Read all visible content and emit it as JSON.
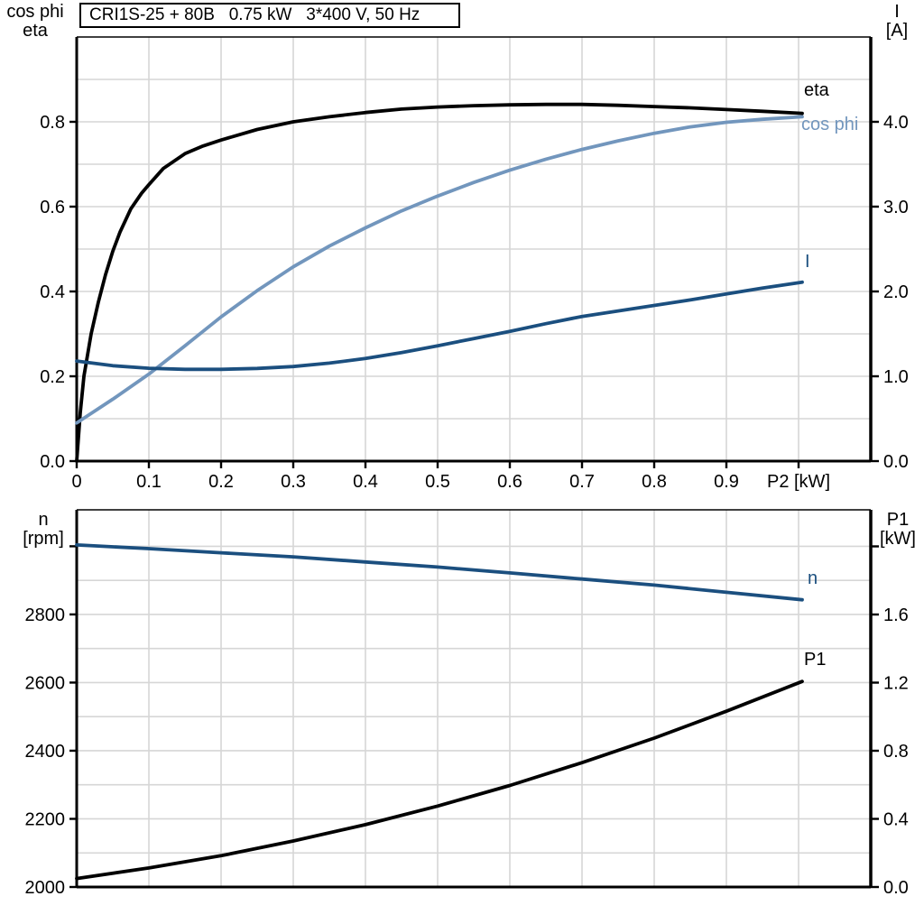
{
  "title": "CRI1S-25 + 80B   0.75 kW   3*400 V, 50 Hz",
  "colors": {
    "curve_black": "#000000",
    "curve_dark_blue": "#1b4f7f",
    "curve_light_blue": "#7296bd",
    "grid": "#d6d6d6",
    "frame": "#000000"
  },
  "chart_data": [
    {
      "type": "line",
      "x_axis": {
        "label": "P2 [kW]",
        "range": [
          0,
          1.1
        ],
        "tick_step": 0.1,
        "tick_labels": [
          "0",
          "0.1",
          "0.2",
          "0.3",
          "0.4",
          "0.5",
          "0.6",
          "0.7",
          "0.8",
          "0.9",
          "P2 [kW]"
        ],
        "grid": true
      },
      "left_axis": {
        "title_lines": [
          "cos phi",
          "eta"
        ],
        "range": [
          0,
          1.0
        ],
        "major_ticks": [
          0,
          0.2,
          0.4,
          0.6,
          0.8
        ],
        "tick_labels": [
          "0.0",
          "0.2",
          "0.4",
          "0.6",
          "0.8"
        ],
        "minor_step": 0.1,
        "grid": true
      },
      "right_axis": {
        "title_lines": [
          "I",
          "[A]"
        ],
        "range": [
          0,
          5.0
        ],
        "major_ticks": [
          0,
          1.0,
          2.0,
          3.0,
          4.0
        ],
        "tick_labels": [
          "0.0",
          "1.0",
          "2.0",
          "3.0",
          "4.0"
        ]
      },
      "series": [
        {
          "name": "eta",
          "label": "eta",
          "axis": "left",
          "color_key": "curve_black",
          "points": [
            [
              0,
              0
            ],
            [
              0.005,
              0.115
            ],
            [
              0.01,
              0.2
            ],
            [
              0.02,
              0.3
            ],
            [
              0.03,
              0.375
            ],
            [
              0.04,
              0.44
            ],
            [
              0.05,
              0.495
            ],
            [
              0.06,
              0.54
            ],
            [
              0.075,
              0.595
            ],
            [
              0.09,
              0.632
            ],
            [
              0.1,
              0.652
            ],
            [
              0.12,
              0.69
            ],
            [
              0.15,
              0.725
            ],
            [
              0.175,
              0.743
            ],
            [
              0.2,
              0.757
            ],
            [
              0.25,
              0.782
            ],
            [
              0.3,
              0.8
            ],
            [
              0.35,
              0.812
            ],
            [
              0.4,
              0.822
            ],
            [
              0.45,
              0.83
            ],
            [
              0.5,
              0.835
            ],
            [
              0.55,
              0.838
            ],
            [
              0.6,
              0.84
            ],
            [
              0.65,
              0.841
            ],
            [
              0.7,
              0.841
            ],
            [
              0.75,
              0.839
            ],
            [
              0.8,
              0.836
            ],
            [
              0.85,
              0.833
            ],
            [
              0.9,
              0.829
            ],
            [
              0.95,
              0.825
            ],
            [
              1.005,
              0.82
            ]
          ]
        },
        {
          "name": "cos phi",
          "label": "cos phi",
          "axis": "left",
          "color_key": "curve_light_blue",
          "points": [
            [
              0,
              0.09
            ],
            [
              0.05,
              0.146
            ],
            [
              0.1,
              0.205
            ],
            [
              0.15,
              0.272
            ],
            [
              0.2,
              0.34
            ],
            [
              0.25,
              0.402
            ],
            [
              0.3,
              0.458
            ],
            [
              0.35,
              0.507
            ],
            [
              0.4,
              0.55
            ],
            [
              0.45,
              0.59
            ],
            [
              0.5,
              0.625
            ],
            [
              0.55,
              0.657
            ],
            [
              0.6,
              0.686
            ],
            [
              0.65,
              0.712
            ],
            [
              0.7,
              0.735
            ],
            [
              0.75,
              0.755
            ],
            [
              0.8,
              0.773
            ],
            [
              0.85,
              0.788
            ],
            [
              0.9,
              0.799
            ],
            [
              0.95,
              0.806
            ],
            [
              1.005,
              0.812
            ]
          ]
        },
        {
          "name": "I",
          "label": "I",
          "axis": "right",
          "color_key": "curve_dark_blue",
          "points": [
            [
              0,
              1.18
            ],
            [
              0.05,
              1.125
            ],
            [
              0.1,
              1.095
            ],
            [
              0.15,
              1.082
            ],
            [
              0.2,
              1.082
            ],
            [
              0.25,
              1.093
            ],
            [
              0.3,
              1.115
            ],
            [
              0.35,
              1.155
            ],
            [
              0.4,
              1.21
            ],
            [
              0.45,
              1.28
            ],
            [
              0.5,
              1.36
            ],
            [
              0.55,
              1.445
            ],
            [
              0.6,
              1.53
            ],
            [
              0.65,
              1.62
            ],
            [
              0.7,
              1.705
            ],
            [
              0.75,
              1.77
            ],
            [
              0.8,
              1.835
            ],
            [
              0.85,
              1.9
            ],
            [
              0.9,
              1.97
            ],
            [
              0.95,
              2.04
            ],
            [
              1.005,
              2.11
            ]
          ]
        }
      ]
    },
    {
      "type": "line",
      "x_axis": {
        "label": "",
        "range": [
          0,
          1.1
        ],
        "tick_step": 0.1,
        "tick_labels": [],
        "grid": true
      },
      "left_axis": {
        "title_lines": [
          "n",
          "[rpm]"
        ],
        "range": [
          2000,
          3107
        ],
        "major_ticks": [
          2000,
          2200,
          2400,
          2600,
          2800,
          3000
        ],
        "tick_labels": [
          "2000",
          "2200",
          "2400",
          "2600",
          "2800",
          ""
        ],
        "minor_step": 100,
        "grid": true
      },
      "right_axis": {
        "title_lines": [
          "P1",
          "[kW]"
        ],
        "range": [
          0,
          2.2146
        ],
        "major_ticks": [
          0,
          0.4,
          0.8,
          1.2,
          1.6,
          2.0
        ],
        "tick_labels": [
          "0.0",
          "0.4",
          "0.8",
          "1.2",
          "1.6",
          ""
        ]
      },
      "series": [
        {
          "name": "n",
          "label": "n",
          "axis": "left",
          "color_key": "curve_dark_blue",
          "points": [
            [
              0,
              3004
            ],
            [
              0.1,
              2993
            ],
            [
              0.2,
              2981
            ],
            [
              0.3,
              2969
            ],
            [
              0.4,
              2954
            ],
            [
              0.5,
              2939
            ],
            [
              0.6,
              2922
            ],
            [
              0.7,
              2904
            ],
            [
              0.8,
              2886
            ],
            [
              0.9,
              2865
            ],
            [
              1.005,
              2843
            ]
          ]
        },
        {
          "name": "P1",
          "label": "P1",
          "axis": "right",
          "color_key": "curve_black",
          "points": [
            [
              0,
              0.05
            ],
            [
              0.1,
              0.112
            ],
            [
              0.2,
              0.184
            ],
            [
              0.3,
              0.27
            ],
            [
              0.4,
              0.366
            ],
            [
              0.5,
              0.475
            ],
            [
              0.6,
              0.596
            ],
            [
              0.7,
              0.73
            ],
            [
              0.8,
              0.874
            ],
            [
              0.9,
              1.032
            ],
            [
              1.005,
              1.207
            ]
          ]
        }
      ]
    }
  ]
}
